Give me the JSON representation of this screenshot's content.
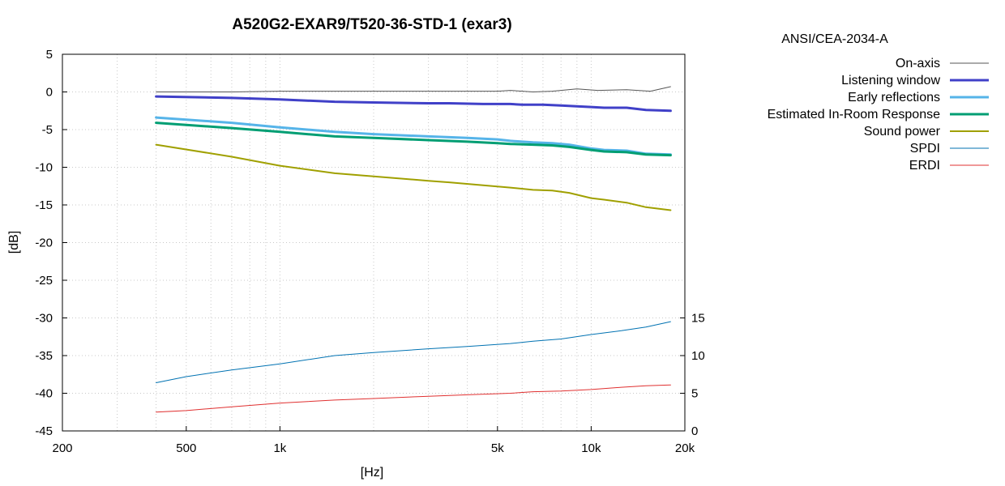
{
  "chart_data": {
    "type": "line",
    "title": "A520G2-EXAR9/T520-36-STD-1 (exar3)",
    "standard": "ANSI/CEA-2034-A",
    "xlabel": "[Hz]",
    "ylabel": "[dB]",
    "x_scale": "log",
    "xlim": [
      200,
      20000
    ],
    "ylim": [
      -45,
      5
    ],
    "y2lim": [
      0,
      50
    ],
    "x_ticks": [
      {
        "value": 200,
        "label": "200"
      },
      {
        "value": 500,
        "label": "500"
      },
      {
        "value": 1000,
        "label": "1k"
      },
      {
        "value": 5000,
        "label": "5k"
      },
      {
        "value": 10000,
        "label": "10k"
      },
      {
        "value": 20000,
        "label": "20k"
      }
    ],
    "y_ticks": [
      {
        "value": 5,
        "label": "5"
      },
      {
        "value": 0,
        "label": "0"
      },
      {
        "value": -5,
        "label": "-5"
      },
      {
        "value": -10,
        "label": "-10"
      },
      {
        "value": -15,
        "label": "-15"
      },
      {
        "value": -20,
        "label": "-20"
      },
      {
        "value": -25,
        "label": "-25"
      },
      {
        "value": -30,
        "label": "-30"
      },
      {
        "value": -35,
        "label": "-35"
      },
      {
        "value": -40,
        "label": "-40"
      },
      {
        "value": -45,
        "label": "-45"
      }
    ],
    "y2_ticks": [
      {
        "value": 15,
        "label": "15"
      },
      {
        "value": 10,
        "label": "10"
      },
      {
        "value": 5,
        "label": "5"
      },
      {
        "value": 0,
        "label": "0"
      }
    ],
    "grid": true,
    "legend_position": "right",
    "series": [
      {
        "name": "On-axis",
        "color": "#555555",
        "width": 1,
        "axis": "y",
        "x": [
          400,
          700,
          1000,
          2000,
          3000,
          5000,
          5500,
          6500,
          7500,
          9000,
          10500,
          13000,
          15500,
          18000
        ],
        "y": [
          0.0,
          0.0,
          0.1,
          0.1,
          0.1,
          0.1,
          0.2,
          0.0,
          0.1,
          0.4,
          0.2,
          0.3,
          0.1,
          0.7
        ]
      },
      {
        "name": "Listening window",
        "color": "#4040c8",
        "width": 3,
        "axis": "y",
        "x": [
          400,
          700,
          1000,
          1500,
          2000,
          3000,
          3500,
          4500,
          5500,
          6000,
          7000,
          8000,
          9000,
          10000,
          11000,
          13000,
          15000,
          18000
        ],
        "y": [
          -0.6,
          -0.8,
          -1.0,
          -1.3,
          -1.4,
          -1.5,
          -1.5,
          -1.6,
          -1.6,
          -1.7,
          -1.7,
          -1.8,
          -1.9,
          -2.0,
          -2.1,
          -2.1,
          -2.4,
          -2.5
        ]
      },
      {
        "name": "Early reflections",
        "color": "#56b4e9",
        "width": 3,
        "axis": "y",
        "x": [
          400,
          700,
          1000,
          1500,
          2000,
          3000,
          4000,
          5000,
          5500,
          6500,
          7500,
          8500,
          10000,
          11000,
          13000,
          15000,
          18000
        ],
        "y": [
          -3.4,
          -4.1,
          -4.7,
          -5.3,
          -5.6,
          -5.9,
          -6.1,
          -6.3,
          -6.5,
          -6.7,
          -6.8,
          -7.0,
          -7.5,
          -7.7,
          -7.8,
          -8.2,
          -8.3
        ]
      },
      {
        "name": "Estimated In-Room Response",
        "color": "#009e73",
        "width": 3,
        "axis": "y",
        "x": [
          400,
          700,
          1000,
          1500,
          2000,
          3000,
          4000,
          5000,
          5500,
          6500,
          7500,
          8500,
          10000,
          11000,
          13000,
          15000,
          18000
        ],
        "y": [
          -4.1,
          -4.8,
          -5.3,
          -5.9,
          -6.1,
          -6.4,
          -6.6,
          -6.8,
          -6.9,
          -7.0,
          -7.1,
          -7.3,
          -7.7,
          -7.9,
          -8.0,
          -8.3,
          -8.4
        ]
      },
      {
        "name": "Sound power",
        "color": "#a0a000",
        "width": 2,
        "axis": "y",
        "x": [
          400,
          700,
          1000,
          1500,
          2000,
          3000,
          3500,
          4500,
          5500,
          6500,
          7500,
          8500,
          10000,
          11000,
          13000,
          15000,
          18000
        ],
        "y": [
          -7.0,
          -8.6,
          -9.8,
          -10.8,
          -11.2,
          -11.8,
          -12.0,
          -12.4,
          -12.7,
          -13.0,
          -13.1,
          -13.4,
          -14.1,
          -14.3,
          -14.7,
          -15.3,
          -15.7
        ]
      },
      {
        "name": "SPDI",
        "color": "#0072b2",
        "width": 1,
        "axis": "y2",
        "x": [
          400,
          500,
          700,
          1000,
          1500,
          2000,
          3000,
          4000,
          5500,
          6500,
          8000,
          10000,
          12500,
          15000,
          18000
        ],
        "y": [
          6.4,
          7.2,
          8.1,
          8.9,
          10.0,
          10.4,
          10.9,
          11.2,
          11.6,
          11.9,
          12.2,
          12.8,
          13.3,
          13.8,
          14.5
        ]
      },
      {
        "name": "ERDI",
        "color": "#e03030",
        "width": 1,
        "axis": "y2",
        "x": [
          400,
          500,
          700,
          1000,
          1500,
          2000,
          3000,
          4000,
          5500,
          6500,
          8000,
          10000,
          12500,
          15000,
          18000
        ],
        "y": [
          2.5,
          2.7,
          3.2,
          3.7,
          4.1,
          4.3,
          4.6,
          4.8,
          5.0,
          5.2,
          5.3,
          5.5,
          5.8,
          6.0,
          6.1
        ]
      }
    ]
  }
}
